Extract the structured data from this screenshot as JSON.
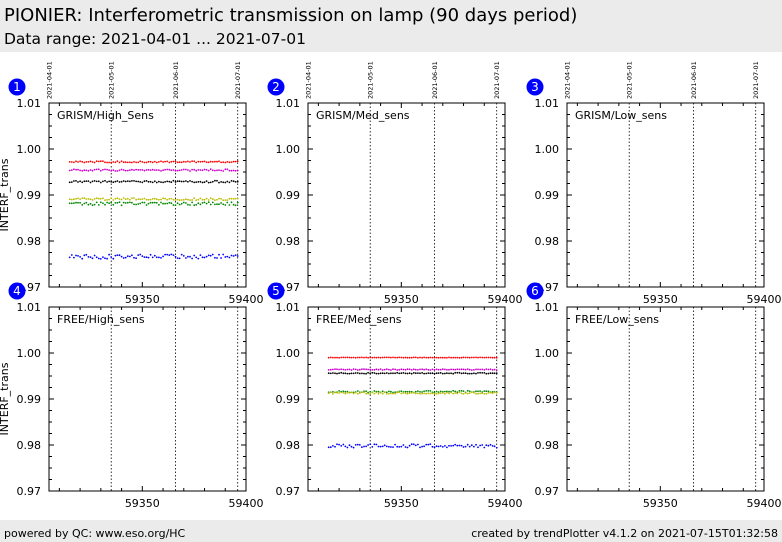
{
  "header": {
    "title": "PIONIER: Interferometric transmission on lamp (90 days period)",
    "subtitle": "Data range: 2021-04-01 ... 2021-07-01"
  },
  "footer": {
    "left": "powered by QC: www.eso.org/HC",
    "right": "created by trendPlotter v4.1.2 on 2021-07-15T01:32:58"
  },
  "chart_data": {
    "type": "scatter",
    "xlim": [
      59305,
      59400
    ],
    "ylim": [
      0.97,
      1.01
    ],
    "xticks": [
      59350,
      59400
    ],
    "xtick_labels": [
      "59350",
      "59400"
    ],
    "yticks": [
      0.97,
      0.98,
      0.99,
      1.0,
      1.01
    ],
    "ytick_labels": [
      "0.97",
      "0.98",
      "0.99",
      "1.00",
      "1.01"
    ],
    "ylabel": "INTERF_trans",
    "date_markers": [
      {
        "mjd": 59305,
        "label": "2021-04-01"
      },
      {
        "mjd": 59335,
        "label": "2021-05-01"
      },
      {
        "mjd": 59366,
        "label": "2021-06-01"
      },
      {
        "mjd": 59396,
        "label": "2021-07-01"
      }
    ],
    "date_range_mjd": [
      59315,
      59396
    ],
    "panels": [
      {
        "number": "1",
        "label": "GRISM/High_Sens",
        "series": [
          {
            "color": "#ff0000",
            "value": 0.9972,
            "scatter": 0.00015
          },
          {
            "color": "#cc00cc",
            "value": 0.9954,
            "scatter": 0.0002
          },
          {
            "color": "#000000",
            "value": 0.9929,
            "scatter": 0.0002
          },
          {
            "color": "#bbbb00",
            "value": 0.9891,
            "scatter": 0.00025
          },
          {
            "color": "#008800",
            "value": 0.9881,
            "scatter": 0.00035
          },
          {
            "color": "#0000ff",
            "value": 0.9766,
            "scatter": 0.0005
          }
        ]
      },
      {
        "number": "2",
        "label": "GRISM/Med_sens",
        "series": []
      },
      {
        "number": "3",
        "label": "GRISM/Low_sens",
        "series": []
      },
      {
        "number": "4",
        "label": "FREE/High_sens",
        "series": []
      },
      {
        "number": "5",
        "label": "FREE/Med_sens",
        "series": [
          {
            "color": "#ff0000",
            "value": 0.999,
            "scatter": 5e-05
          },
          {
            "color": "#cc00cc",
            "value": 0.9964,
            "scatter": 0.0001
          },
          {
            "color": "#000000",
            "value": 0.9956,
            "scatter": 0.0001
          },
          {
            "color": "#008800",
            "value": 0.9916,
            "scatter": 0.0002
          },
          {
            "color": "#bbbb00",
            "value": 0.9913,
            "scatter": 0.0002
          },
          {
            "color": "#0000ff",
            "value": 0.9798,
            "scatter": 0.0004
          }
        ]
      },
      {
        "number": "6",
        "label": "FREE/Low_sens",
        "series": []
      }
    ]
  }
}
